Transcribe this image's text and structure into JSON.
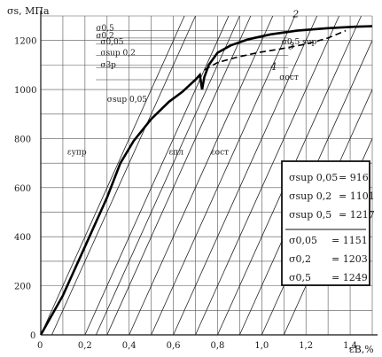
{
  "chart_data": {
    "type": "line",
    "ylabel": "σs, МПа",
    "xlabel": "εB,%",
    "xlim": [
      0,
      1.5
    ],
    "ylim": [
      0,
      1300
    ],
    "x_ticks": [
      "0",
      "0,2",
      "0,4",
      "0,6",
      "0,8",
      "1,0",
      "1,2",
      "1,4"
    ],
    "y_ticks": [
      "200",
      "400",
      "600",
      "800",
      "1000",
      "1200"
    ],
    "grid": true,
    "series": [
      {
        "name": "",
        "style": "solid-thick",
        "x": [
          0,
          0.1,
          0.2,
          0.3,
          0.36,
          0.42,
          0.5,
          0.58,
          0.64,
          0.7,
          0.72,
          0.73,
          0.74,
          0.76,
          0.8,
          0.86,
          0.94,
          1.04,
          1.16,
          1.3,
          1.42,
          1.5
        ],
        "y": [
          0,
          160,
          360,
          560,
          700,
          790,
          880,
          950,
          990,
          1040,
          1060,
          1000,
          1050,
          1100,
          1150,
          1180,
          1205,
          1225,
          1240,
          1250,
          1256,
          1258
        ]
      },
      {
        "name": "",
        "style": "dashed",
        "x": [
          0.74,
          0.8,
          0.88,
          0.98,
          1.08,
          1.2,
          1.3,
          1.38
        ],
        "y": [
          1080,
          1110,
          1130,
          1150,
          1165,
          1185,
          1210,
          1240
        ]
      }
    ],
    "curve_labels": [
      "2",
      "3",
      "4"
    ],
    "annotations": [
      {
        "text": "σ0,5",
        "x": 0.25,
        "y": 1240
      },
      {
        "text": "σ0,2",
        "x": 0.25,
        "y": 1210
      },
      {
        "text": "σ0,05",
        "x": 0.27,
        "y": 1185
      },
      {
        "text": "σsup 0,2",
        "x": 0.27,
        "y": 1140
      },
      {
        "text": "σ3p",
        "x": 0.27,
        "y": 1090
      },
      {
        "text": "σsup 0,05",
        "x": 0.3,
        "y": 950
      },
      {
        "text": "εупр",
        "x": 0.12,
        "y": 735
      },
      {
        "text": "εпл",
        "x": 0.58,
        "y": 735
      },
      {
        "text": "εост",
        "x": 0.77,
        "y": 735
      },
      {
        "text": "σост",
        "x": 1.08,
        "y": 1040
      },
      {
        "text": "σ0,5 sup",
        "x": 1.09,
        "y": 1185
      }
    ],
    "legend_box": {
      "group1": [
        {
          "label": "σsup 0,05",
          "value": "916"
        },
        {
          "label": "σsup 0,2",
          "value": "1101"
        },
        {
          "label": "σsup 0,5",
          "value": "1217"
        }
      ],
      "group2": [
        {
          "label": "σ0,05",
          "value": "1151"
        },
        {
          "label": "σ0,2",
          "value": "1203"
        },
        {
          "label": "σ0,5",
          "value": "1249"
        }
      ]
    }
  }
}
